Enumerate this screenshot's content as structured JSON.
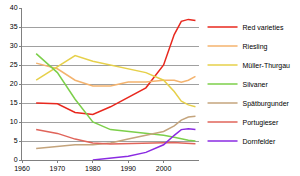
{
  "chart_data": {
    "type": "line",
    "x": [
      1964,
      1970,
      1975,
      1980,
      1985,
      1990,
      1995,
      2000,
      2003,
      2005,
      2007,
      2009
    ],
    "series": [
      {
        "name": "Red varieties",
        "color": "#e8281e",
        "values": [
          15,
          14.8,
          12.5,
          12,
          14,
          16.5,
          19,
          25,
          33,
          36.5,
          37,
          36.7
        ]
      },
      {
        "name": "Riesling",
        "color": "#f4b36e",
        "values": [
          25.5,
          24,
          21,
          19.5,
          19.5,
          20.5,
          20.5,
          21,
          21,
          20.5,
          21,
          22
        ]
      },
      {
        "name": "Müller-Thurgau",
        "color": "#e6d04a",
        "values": [
          21,
          24.5,
          27.5,
          26,
          25,
          24,
          23,
          21,
          18,
          15.5,
          14.5,
          14
        ]
      },
      {
        "name": "Silvaner",
        "color": "#7ccf4a",
        "values": [
          28,
          23,
          16,
          10,
          8,
          7.5,
          7,
          6.5,
          6,
          5.5,
          5.2,
          5
        ]
      },
      {
        "name": "Spätburgunder",
        "color": "#c4a47c",
        "values": [
          3,
          3.5,
          4,
          4,
          4.5,
          5.5,
          6.5,
          7.5,
          9,
          10.5,
          11.3,
          11.5
        ]
      },
      {
        "name": "Portugieser",
        "color": "#e0645a",
        "values": [
          8,
          7,
          5.5,
          4.5,
          4.2,
          4.3,
          4.5,
          4.6,
          4.6,
          4.5,
          4.4,
          4.3
        ]
      },
      {
        "name": "Dornfelder",
        "color": "#8a2be2",
        "values": [
          null,
          null,
          null,
          0,
          0.5,
          1,
          2,
          4,
          6.5,
          8,
          8.2,
          8
        ]
      }
    ],
    "xlim": [
      1960,
      2010
    ],
    "xticks": [
      1960,
      1970,
      1980,
      1990,
      2000
    ],
    "ylim": [
      0,
      40
    ],
    "yticks": [
      0,
      5,
      10,
      15,
      20,
      25,
      30,
      35,
      40
    ],
    "grid": true,
    "legend": "right"
  }
}
